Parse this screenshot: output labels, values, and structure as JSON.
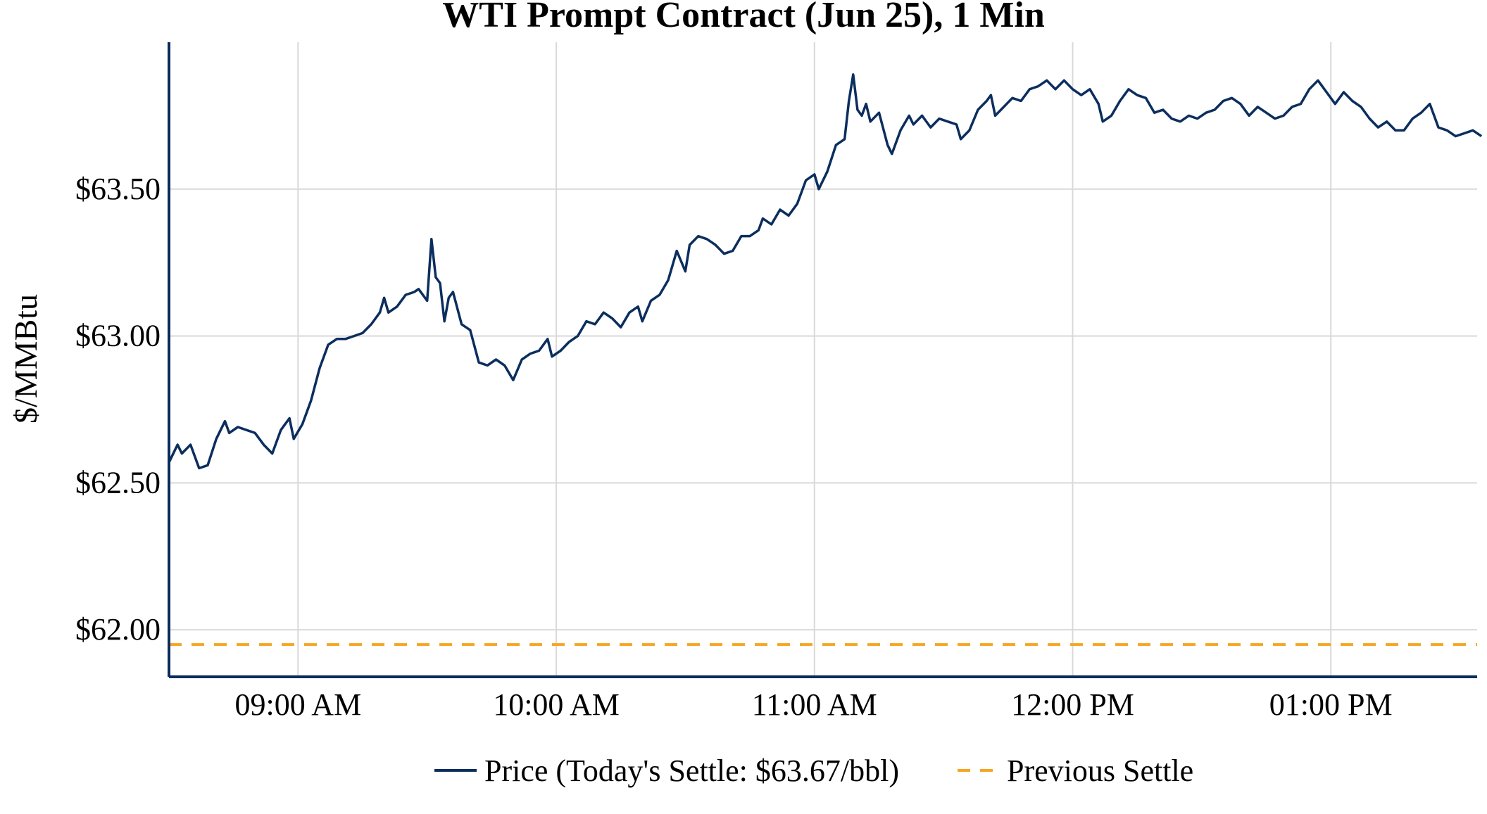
{
  "chart_data": {
    "type": "line",
    "title": "WTI Prompt Contract (Jun 25), 1 Min",
    "xlabel": "",
    "ylabel": "$/MMBtu",
    "x_axis": {
      "start_minute": 510,
      "end_minute": 814,
      "ticks": [
        {
          "minute": 540,
          "label": "09:00 AM"
        },
        {
          "minute": 600,
          "label": "10:00 AM"
        },
        {
          "minute": 660,
          "label": "11:00 AM"
        },
        {
          "minute": 720,
          "label": "12:00 PM"
        },
        {
          "minute": 780,
          "label": "01:00 PM"
        }
      ]
    },
    "ylim": [
      61.84,
      64.0
    ],
    "y_ticks": [
      {
        "value": 62.0,
        "label": "$62.00"
      },
      {
        "value": 62.5,
        "label": "$62.50"
      },
      {
        "value": 63.0,
        "label": "$63.00"
      },
      {
        "value": 63.5,
        "label": "$63.50"
      }
    ],
    "grid": true,
    "legend_position": "bottom-center",
    "series": [
      {
        "name": "Price (Today's Settle: $63.67/bbl)",
        "color": "#0b2e5e",
        "style": "solid",
        "points": [
          [
            510,
            62.57
          ],
          [
            512,
            62.63
          ],
          [
            513,
            62.6
          ],
          [
            515,
            62.63
          ],
          [
            517,
            62.55
          ],
          [
            519,
            62.56
          ],
          [
            521,
            62.65
          ],
          [
            523,
            62.71
          ],
          [
            524,
            62.67
          ],
          [
            526,
            62.69
          ],
          [
            528,
            62.68
          ],
          [
            530,
            62.67
          ],
          [
            532,
            62.63
          ],
          [
            534,
            62.6
          ],
          [
            536,
            62.68
          ],
          [
            538,
            62.72
          ],
          [
            539,
            62.65
          ],
          [
            541,
            62.7
          ],
          [
            543,
            62.78
          ],
          [
            545,
            62.89
          ],
          [
            547,
            62.97
          ],
          [
            549,
            62.99
          ],
          [
            551,
            62.99
          ],
          [
            553,
            63.0
          ],
          [
            555,
            63.01
          ],
          [
            557,
            63.04
          ],
          [
            559,
            63.08
          ],
          [
            560,
            63.13
          ],
          [
            561,
            63.08
          ],
          [
            563,
            63.1
          ],
          [
            565,
            63.14
          ],
          [
            567,
            63.15
          ],
          [
            568,
            63.16
          ],
          [
            570,
            63.12
          ],
          [
            571,
            63.33
          ],
          [
            572,
            63.2
          ],
          [
            573,
            63.18
          ],
          [
            574,
            63.05
          ],
          [
            575,
            63.13
          ],
          [
            576,
            63.15
          ],
          [
            578,
            63.04
          ],
          [
            580,
            63.02
          ],
          [
            582,
            62.91
          ],
          [
            584,
            62.9
          ],
          [
            586,
            62.92
          ],
          [
            588,
            62.9
          ],
          [
            590,
            62.85
          ],
          [
            592,
            62.92
          ],
          [
            594,
            62.94
          ],
          [
            596,
            62.95
          ],
          [
            598,
            62.99
          ],
          [
            599,
            62.93
          ],
          [
            601,
            62.95
          ],
          [
            603,
            62.98
          ],
          [
            605,
            63.0
          ],
          [
            607,
            63.05
          ],
          [
            609,
            63.04
          ],
          [
            611,
            63.08
          ],
          [
            613,
            63.06
          ],
          [
            615,
            63.03
          ],
          [
            617,
            63.08
          ],
          [
            619,
            63.1
          ],
          [
            620,
            63.05
          ],
          [
            622,
            63.12
          ],
          [
            624,
            63.14
          ],
          [
            626,
            63.19
          ],
          [
            628,
            63.29
          ],
          [
            630,
            63.22
          ],
          [
            631,
            63.31
          ],
          [
            633,
            63.34
          ],
          [
            635,
            63.33
          ],
          [
            637,
            63.31
          ],
          [
            639,
            63.28
          ],
          [
            641,
            63.29
          ],
          [
            643,
            63.34
          ],
          [
            645,
            63.34
          ],
          [
            647,
            63.36
          ],
          [
            648,
            63.4
          ],
          [
            650,
            63.38
          ],
          [
            652,
            63.43
          ],
          [
            654,
            63.41
          ],
          [
            656,
            63.45
          ],
          [
            658,
            63.53
          ],
          [
            660,
            63.55
          ],
          [
            661,
            63.5
          ],
          [
            663,
            63.56
          ],
          [
            665,
            63.65
          ],
          [
            667,
            63.67
          ],
          [
            668,
            63.8
          ],
          [
            669,
            63.89
          ],
          [
            670,
            63.77
          ],
          [
            671,
            63.75
          ],
          [
            672,
            63.79
          ],
          [
            673,
            63.73
          ],
          [
            675,
            63.76
          ],
          [
            677,
            63.65
          ],
          [
            678,
            63.62
          ],
          [
            680,
            63.7
          ],
          [
            682,
            63.75
          ],
          [
            683,
            63.72
          ],
          [
            685,
            63.75
          ],
          [
            687,
            63.71
          ],
          [
            689,
            63.74
          ],
          [
            691,
            63.73
          ],
          [
            693,
            63.72
          ],
          [
            694,
            63.67
          ],
          [
            696,
            63.7
          ],
          [
            698,
            63.77
          ],
          [
            700,
            63.8
          ],
          [
            701,
            63.82
          ],
          [
            702,
            63.75
          ],
          [
            704,
            63.78
          ],
          [
            706,
            63.81
          ],
          [
            708,
            63.8
          ],
          [
            710,
            63.84
          ],
          [
            712,
            63.85
          ],
          [
            714,
            63.87
          ],
          [
            716,
            63.84
          ],
          [
            718,
            63.87
          ],
          [
            720,
            63.84
          ],
          [
            722,
            63.82
          ],
          [
            724,
            63.84
          ],
          [
            726,
            63.79
          ],
          [
            727,
            63.73
          ],
          [
            729,
            63.75
          ],
          [
            731,
            63.8
          ],
          [
            733,
            63.84
          ],
          [
            735,
            63.82
          ],
          [
            737,
            63.81
          ],
          [
            739,
            63.76
          ],
          [
            741,
            63.77
          ],
          [
            743,
            63.74
          ],
          [
            745,
            63.73
          ],
          [
            747,
            63.75
          ],
          [
            749,
            63.74
          ],
          [
            751,
            63.76
          ],
          [
            753,
            63.77
          ],
          [
            755,
            63.8
          ],
          [
            757,
            63.81
          ],
          [
            759,
            63.79
          ],
          [
            761,
            63.75
          ],
          [
            763,
            63.78
          ],
          [
            765,
            63.76
          ],
          [
            767,
            63.74
          ],
          [
            769,
            63.75
          ],
          [
            771,
            63.78
          ],
          [
            773,
            63.79
          ],
          [
            775,
            63.84
          ],
          [
            777,
            63.87
          ],
          [
            779,
            63.83
          ],
          [
            781,
            63.79
          ],
          [
            783,
            63.83
          ],
          [
            785,
            63.8
          ],
          [
            787,
            63.78
          ],
          [
            789,
            63.74
          ],
          [
            791,
            63.71
          ],
          [
            793,
            63.73
          ],
          [
            795,
            63.7
          ],
          [
            797,
            63.7
          ],
          [
            799,
            63.74
          ],
          [
            801,
            63.76
          ],
          [
            803,
            63.79
          ],
          [
            805,
            63.71
          ],
          [
            807,
            63.7
          ],
          [
            809,
            63.68
          ],
          [
            811,
            63.69
          ],
          [
            813,
            63.7
          ],
          [
            815,
            63.68
          ]
        ]
      },
      {
        "name": "Previous Settle",
        "color": "#f5a623",
        "style": "dashed",
        "value": 61.95
      }
    ]
  }
}
